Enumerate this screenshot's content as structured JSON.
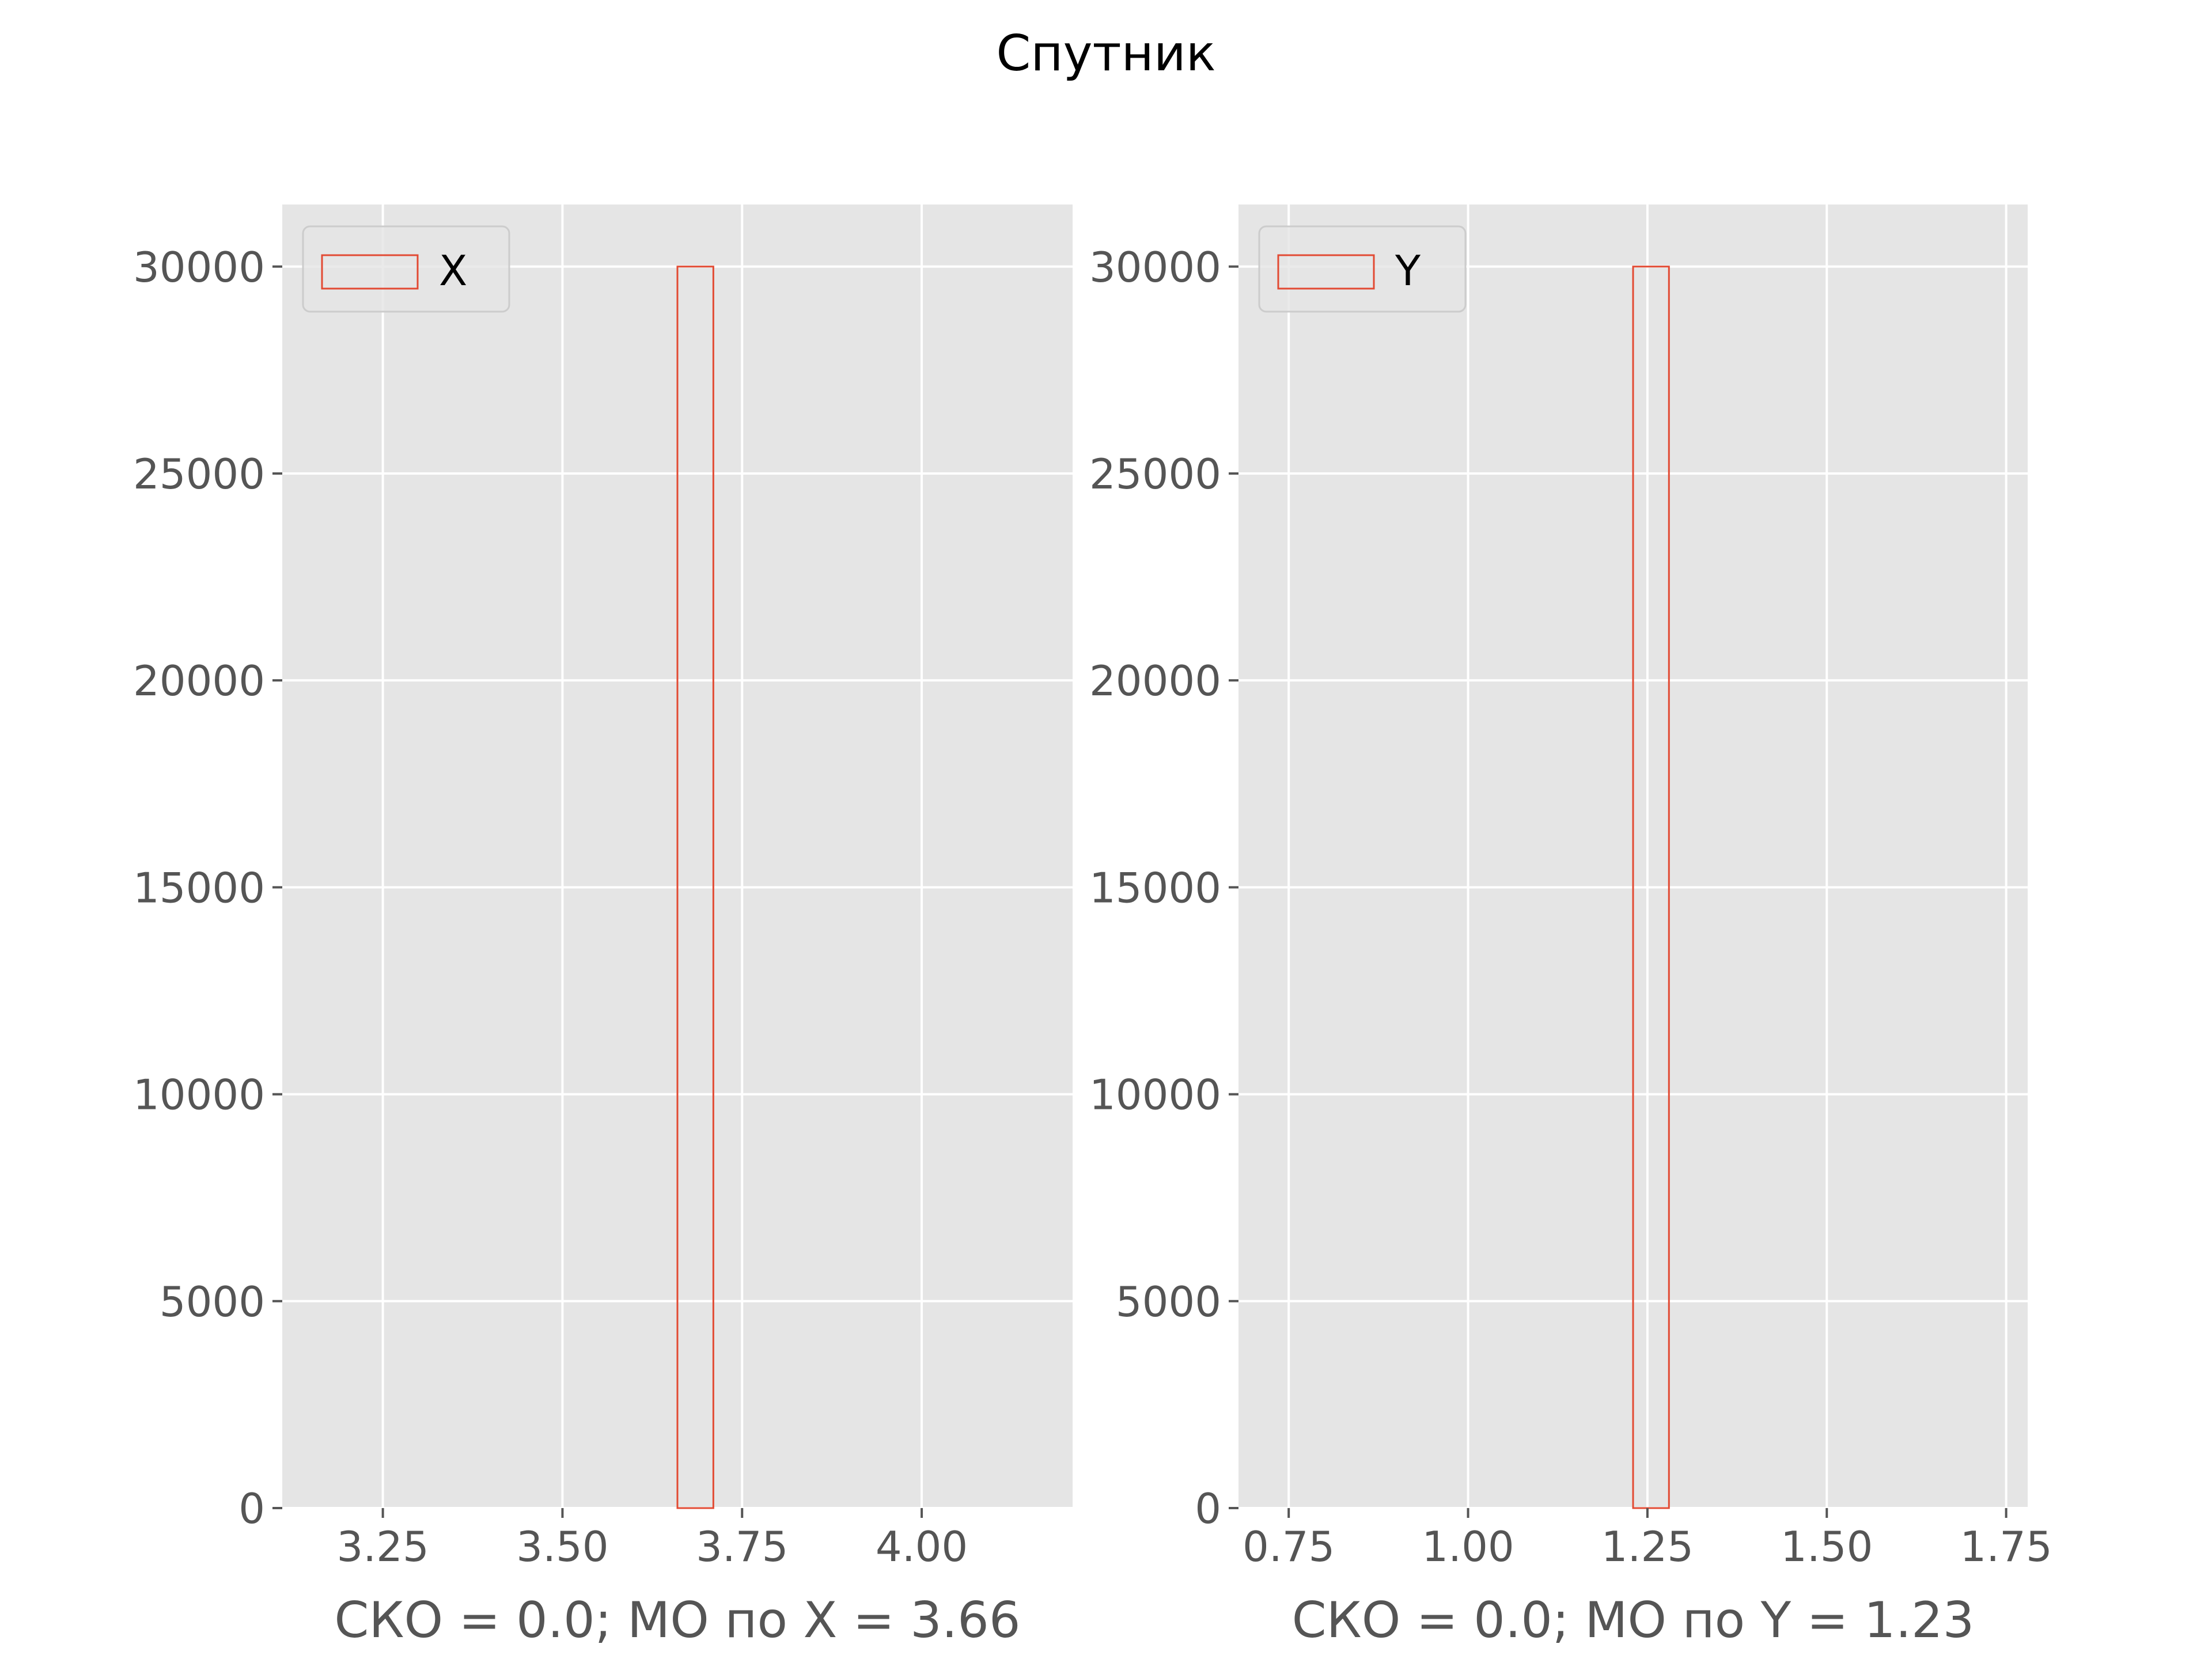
{
  "figure": {
    "suptitle": "Спутник"
  },
  "chart_data": [
    {
      "type": "bar",
      "histogram": true,
      "bins": [
        {
          "start": 3.66,
          "end": 3.71,
          "count": 30000
        }
      ],
      "xlabel": "СКО = 0.0; МО по X = 3.66",
      "ylabel": "",
      "xlim": [
        3.11,
        4.21
      ],
      "ylim": [
        0,
        31500
      ],
      "xticks": [
        3.25,
        3.5,
        3.75,
        4.0
      ],
      "xtick_labels": [
        "3.25",
        "3.50",
        "3.75",
        "4.00"
      ],
      "yticks": [
        0,
        5000,
        10000,
        15000,
        20000,
        25000,
        30000
      ],
      "ytick_labels": [
        "0",
        "5000",
        "10000",
        "15000",
        "20000",
        "25000",
        "30000"
      ],
      "legend": {
        "label": "X",
        "position": "upper left"
      },
      "grid": true
    },
    {
      "type": "bar",
      "histogram": true,
      "bins": [
        {
          "start": 1.23,
          "end": 1.28,
          "count": 30000
        }
      ],
      "xlabel": "СКО = 0.0; МО по Y = 1.23",
      "ylabel": "",
      "xlim": [
        0.68,
        1.78
      ],
      "ylim": [
        0,
        31500
      ],
      "xticks": [
        0.75,
        1.0,
        1.25,
        1.5,
        1.75
      ],
      "xtick_labels": [
        "0.75",
        "1.00",
        "1.25",
        "1.50",
        "1.75"
      ],
      "yticks": [
        0,
        5000,
        10000,
        15000,
        20000,
        25000,
        30000
      ],
      "ytick_labels": [
        "0",
        "5000",
        "10000",
        "15000",
        "20000",
        "25000",
        "30000"
      ],
      "legend": {
        "label": "Y",
        "position": "upper left"
      },
      "grid": true
    }
  ],
  "colors": {
    "figure_background": "#ffffff",
    "axes_background": "#e5e5e5",
    "grid": "#ffffff",
    "bar_edge": "#e24a33",
    "tick_label": "#555555",
    "title": "#000000",
    "legend_background": "#e5e5e5",
    "legend_border": "#cccccc"
  }
}
